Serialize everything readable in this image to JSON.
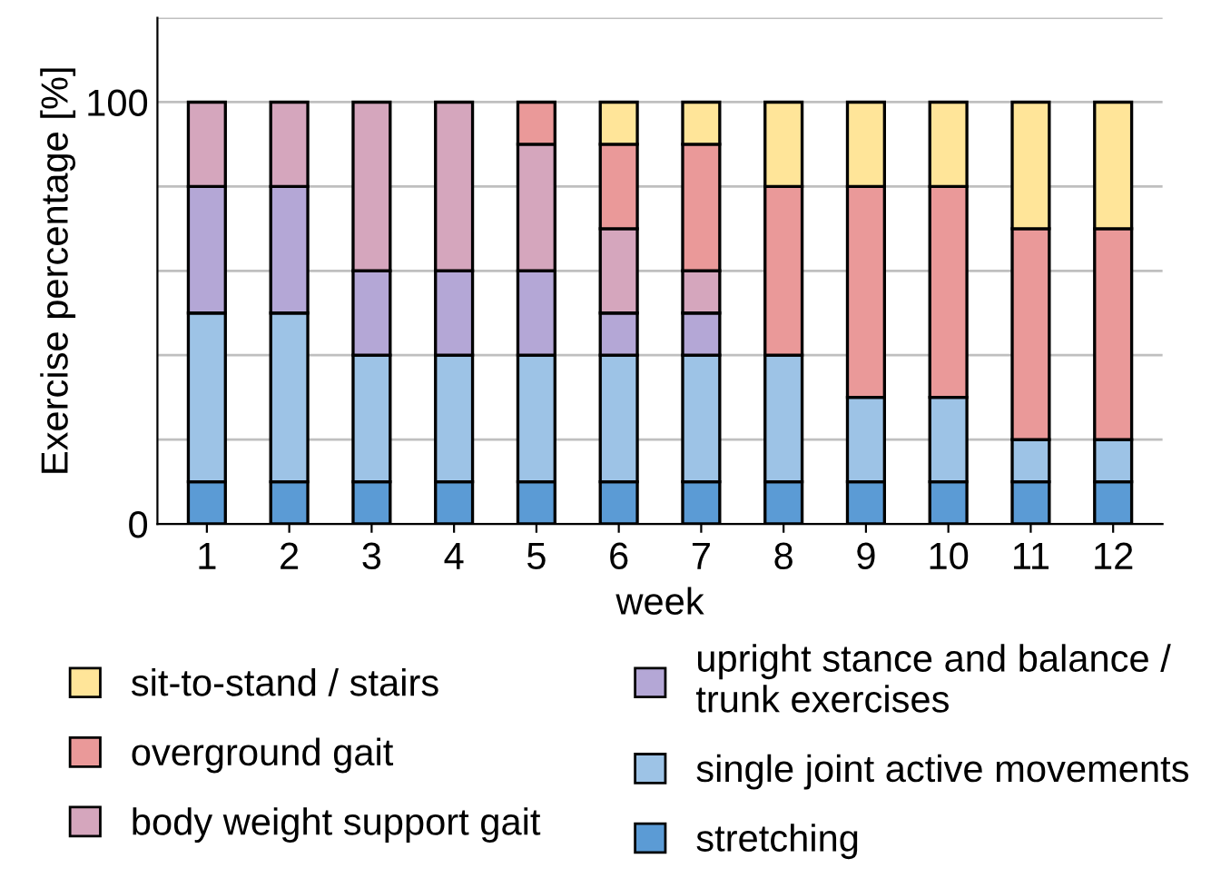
{
  "chart_data": {
    "type": "bar",
    "stacked": true,
    "xlabel": "week",
    "ylabel": "Exercise percentage [%]",
    "categories": [
      "1",
      "2",
      "3",
      "4",
      "5",
      "6",
      "7",
      "8",
      "9",
      "10",
      "11",
      "12"
    ],
    "series": [
      {
        "name": "stretching",
        "color": "#5b9bd5",
        "values": [
          10,
          10,
          10,
          10,
          10,
          10,
          10,
          10,
          10,
          10,
          10,
          10
        ]
      },
      {
        "name": "single joint active movements",
        "color": "#9dc3e6",
        "values": [
          40,
          40,
          30,
          30,
          30,
          30,
          30,
          30,
          20,
          20,
          10,
          10
        ]
      },
      {
        "name": "upright stance and balance /\ntrunk exercises",
        "color": "#b4a7d6",
        "values": [
          30,
          30,
          20,
          20,
          20,
          10,
          10,
          null,
          null,
          null,
          null,
          null
        ]
      },
      {
        "name": "body weight support gait",
        "color": "#d5a6bd",
        "values": [
          20,
          20,
          40,
          40,
          30,
          20,
          10,
          null,
          null,
          null,
          null,
          null
        ]
      },
      {
        "name": "overground gait",
        "color": "#ea9999",
        "values": [
          null,
          null,
          null,
          null,
          10,
          20,
          30,
          40,
          50,
          50,
          50,
          50
        ]
      },
      {
        "name": "sit-to-stand / stairs",
        "color": "#ffe599",
        "values": [
          null,
          null,
          null,
          null,
          null,
          10,
          10,
          20,
          20,
          20,
          30,
          30
        ]
      }
    ],
    "ylim": [
      0,
      120
    ],
    "yticks": [
      0,
      {
        "value": 20,
        "label": null
      },
      {
        "value": 40,
        "label": null
      },
      {
        "value": 60,
        "label": null
      },
      {
        "value": 80,
        "label": null
      },
      100,
      {
        "value": 120,
        "label": null
      }
    ],
    "grid": "y",
    "legend": "bottom"
  }
}
